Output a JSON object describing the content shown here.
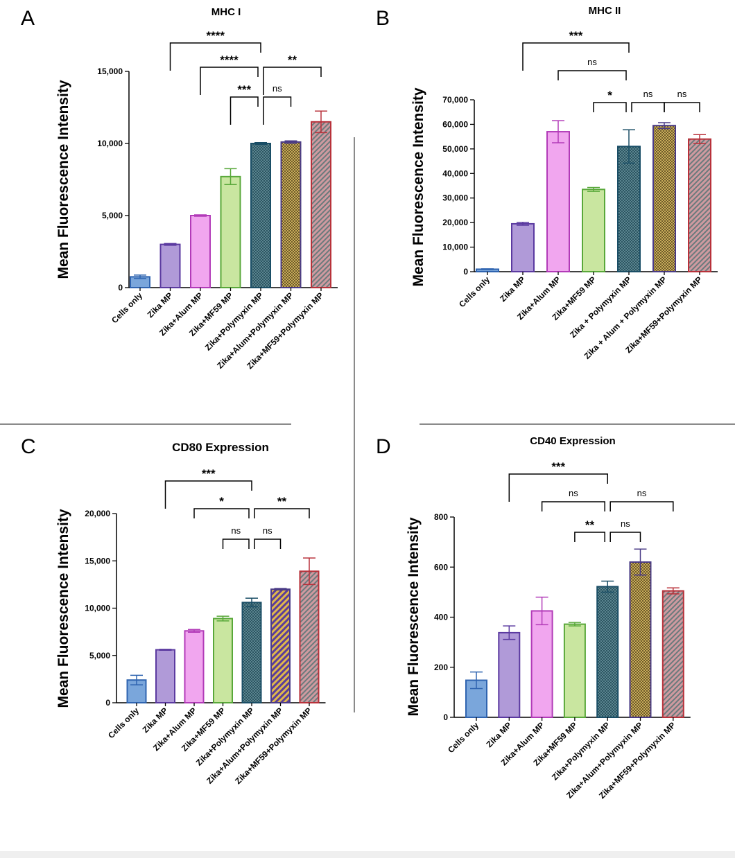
{
  "colors": {
    "cells": "#7aa6db",
    "cells_edge": "#2f64b0",
    "zika": "#b09ad8",
    "zika_edge": "#5b3aa0",
    "alum": "#f1a6ef",
    "alum_edge": "#b23bb8",
    "mf59": "#c9e6a0",
    "mf59_edge": "#59a83a",
    "poly": "#40707c",
    "poly_edge": "#1a4e66",
    "alum_poly": "#b89a55",
    "alum_poly_edge": "#4a3b86",
    "mf59_poly": "#c98c94",
    "mf59_poly_edge": "#b8313a",
    "axis": "#000000",
    "divider": "#8a8a8a"
  },
  "chart_data": [
    {
      "panel": "A",
      "type": "bar",
      "title": "MHC  I",
      "ylabel": "Mean Fluorescence Intensity",
      "xlabel": "",
      "ylim": [
        0,
        15000
      ],
      "yticks": [
        0,
        5000,
        10000,
        15000
      ],
      "ytick_labels": [
        "0",
        "5,000",
        "10,000",
        "15,000"
      ],
      "categories": [
        "Cells only",
        "Zika MP",
        "Zika+Alum MP",
        "Zika+MF59 MP",
        "Zika+Polymyxin MP",
        "Zika+Alum+Polymyxin MP",
        "Zika+MF59+Polymyxin MP"
      ],
      "values": [
        750,
        3000,
        5000,
        7700,
        10000,
        10100,
        11500
      ],
      "errors": [
        120,
        60,
        50,
        550,
        60,
        80,
        750
      ],
      "bar_styles": [
        "cells",
        "zika",
        "alum",
        "mf59",
        "poly",
        "alum_poly",
        "mf59_poly"
      ],
      "comparisons": [
        {
          "from": 1,
          "to": 4,
          "label": "****",
          "level": 95000
        },
        {
          "from": 2,
          "to": 4,
          "label": "****",
          "level": 16200
        },
        {
          "from": 4,
          "to": 6,
          "label": "**",
          "level": 15000
        },
        {
          "from": 3,
          "to": 4,
          "label": "***",
          "level": 13100
        },
        {
          "from": 4,
          "to": 5,
          "label": "ns",
          "level": 13100
        }
      ]
    },
    {
      "panel": "B",
      "type": "bar",
      "title": "MHC II",
      "ylabel": "Mean Fluorescence Intensity",
      "xlabel": "",
      "ylim": [
        0,
        70000
      ],
      "yticks": [
        0,
        10000,
        20000,
        30000,
        40000,
        50000,
        60000,
        70000
      ],
      "ytick_labels": [
        "0",
        "10,000",
        "20,000",
        "30,000",
        "40,000",
        "50,000",
        "60,000",
        "70,000"
      ],
      "categories": [
        "Cells only",
        "Zika MP",
        "Zika+Alum MP",
        "Zika+MF59 MP",
        "Zika + Polymyxin MP",
        "Zika + Alum + Polymyxin MP",
        "Zika+MF59+Polymyxin MP"
      ],
      "values": [
        1000,
        19500,
        57000,
        33500,
        51000,
        59500,
        54000
      ],
      "errors": [
        150,
        600,
        4500,
        800,
        6800,
        1200,
        1800
      ],
      "bar_styles": [
        "cells",
        "zika",
        "alum",
        "mf59",
        "poly",
        "alum_poly",
        "mf59_poly"
      ],
      "comparisons": [
        {
          "from": 1,
          "to": 4,
          "label": "***",
          "level": 0
        },
        {
          "from": 2,
          "to": 4,
          "label": "ns",
          "level": 0
        },
        {
          "from": 3,
          "to": 4,
          "label": "*",
          "level": 0
        },
        {
          "from": 4,
          "to": 5,
          "label": "ns",
          "level": 0
        },
        {
          "from": 5,
          "to": 6,
          "label": "ns",
          "level": 0
        }
      ]
    },
    {
      "panel": "C",
      "type": "bar",
      "title": "CD80 Expression",
      "ylabel": "Mean Fluorescence Intensity",
      "xlabel": "",
      "ylim": [
        0,
        20000
      ],
      "yticks": [
        0,
        5000,
        10000,
        15000,
        20000
      ],
      "ytick_labels": [
        "0",
        "5,000",
        "10,000",
        "15,000",
        "20,000"
      ],
      "categories": [
        "Cells only",
        "Zika MP",
        "Zika+Alum MP",
        "Zika+MF59 MP",
        "Zika+Polymyxin MP",
        "Zika+Alum+Polymyxin MP",
        "Zika+MF59+Polymyxin MP"
      ],
      "values": [
        2400,
        5600,
        7600,
        8900,
        10600,
        12000,
        13900
      ],
      "errors": [
        500,
        50,
        150,
        250,
        450,
        80,
        1400
      ],
      "bar_styles": [
        "cells",
        "zika",
        "alum",
        "mf59",
        "poly",
        "alum_poly",
        "mf59_poly"
      ],
      "comparisons": [
        {
          "from": 1,
          "to": 4,
          "label": "***",
          "level": 0
        },
        {
          "from": 2,
          "to": 4,
          "label": "*",
          "level": 0
        },
        {
          "from": 4,
          "to": 6,
          "label": "**",
          "level": 0
        },
        {
          "from": 3,
          "to": 4,
          "label": "ns",
          "level": 0
        },
        {
          "from": 4,
          "to": 5,
          "label": "ns",
          "level": 0
        }
      ]
    },
    {
      "panel": "D",
      "type": "bar",
      "title": "CD40 Expression",
      "ylabel": "Mean Fluorescence Intensity",
      "xlabel": "",
      "ylim": [
        0,
        800
      ],
      "yticks": [
        0,
        200,
        400,
        600,
        800
      ],
      "ytick_labels": [
        "0",
        "200",
        "400",
        "600",
        "800"
      ],
      "categories": [
        "Cells only",
        "Zika MP",
        "Zika+Alum MP",
        "Zika+MF59 MP",
        "Zika+Polymyxin MP",
        "Zika+Alum+Polymyxin MP",
        "Zika+MF59+Polymyxin MP"
      ],
      "values": [
        148,
        338,
        425,
        372,
        522,
        620,
        505
      ],
      "errors": [
        33,
        27,
        55,
        7,
        22,
        52,
        12
      ],
      "bar_styles": [
        "cells",
        "zika",
        "alum",
        "mf59",
        "poly",
        "alum_poly",
        "mf59_poly"
      ],
      "comparisons": [
        {
          "from": 1,
          "to": 4,
          "label": "***",
          "level": 0
        },
        {
          "from": 2,
          "to": 4,
          "label": "ns",
          "level": 0
        },
        {
          "from": 4,
          "to": 6,
          "label": "ns",
          "level": 0
        },
        {
          "from": 3,
          "to": 4,
          "label": "**",
          "level": 0
        },
        {
          "from": 4,
          "to": 5,
          "label": "ns",
          "level": 0
        }
      ]
    }
  ]
}
